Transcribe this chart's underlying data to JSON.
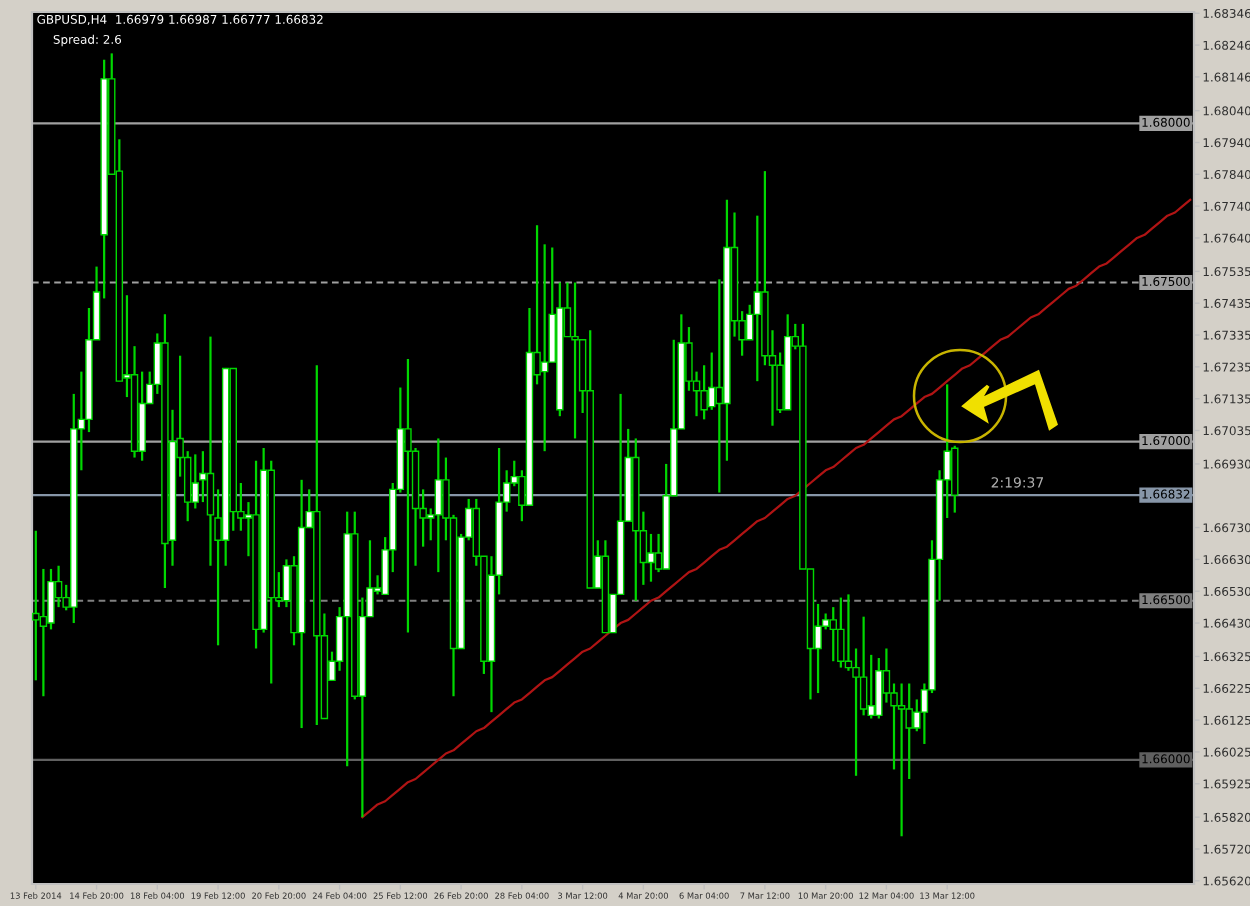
{
  "chart_data": {
    "type": "candlestick",
    "title": "GBPUSD,H4  1.66979 1.66987 1.66777 1.66832",
    "annotations": [
      "Spread: 2.6",
      {
        "text": "2:19:37",
        "y": 1.66832
      }
    ],
    "categories": [
      "13 Feb 2014",
      null,
      null,
      null,
      null,
      null,
      null,
      null,
      "14 Feb 20:00",
      null,
      null,
      null,
      null,
      null,
      null,
      null,
      "18 Feb 04:00",
      null,
      null,
      null,
      null,
      null,
      null,
      null,
      "19 Feb 12:00",
      null,
      null,
      null,
      null,
      null,
      null,
      null,
      "20 Feb 20:00",
      null,
      null,
      null,
      null,
      null,
      null,
      null,
      "24 Feb 04:00",
      null,
      null,
      null,
      null,
      null,
      null,
      null,
      "25 Feb 12:00",
      null,
      null,
      null,
      null,
      null,
      null,
      null,
      "26 Feb 20:00",
      null,
      null,
      null,
      null,
      null,
      null,
      null,
      "28 Feb 04:00",
      null,
      null,
      null,
      null,
      null,
      null,
      null,
      "3 Mar 12:00",
      null,
      null,
      null,
      null,
      null,
      null,
      null,
      "4 Mar 20:00",
      null,
      null,
      null,
      null,
      null,
      null,
      null,
      "6 Mar 04:00",
      null,
      null,
      null,
      null,
      null,
      null,
      null,
      "7 Mar 12:00",
      null,
      null,
      null,
      null,
      null,
      null,
      null,
      "10 Mar 20:00",
      null,
      null,
      null,
      null,
      null,
      null,
      null,
      "12 Mar 04:00",
      null,
      null,
      null,
      null,
      null,
      null,
      null,
      "13 Mar 12:00",
      null,
      null,
      null,
      null,
      null,
      null,
      null,
      null,
      null,
      null,
      null,
      null,
      null,
      null,
      null,
      null,
      null,
      null,
      null,
      null,
      null,
      null,
      null,
      null,
      null,
      null,
      null,
      null,
      null,
      null,
      null,
      null
    ],
    "color": "#00d800",
    "ohlc": [
      [
        1.6646,
        1.6672,
        1.6625,
        1.6644
      ],
      [
        1.6645,
        1.666,
        1.662,
        1.6642
      ],
      [
        1.6643,
        1.666,
        1.6641,
        1.6656
      ],
      [
        1.6656,
        1.6661,
        1.6648,
        1.6651
      ],
      [
        1.6651,
        1.6655,
        1.6647,
        1.6648
      ],
      [
        1.6648,
        1.6715,
        1.6643,
        1.6704
      ],
      [
        1.6704,
        1.6722,
        1.6691,
        1.6707
      ],
      [
        1.6707,
        1.6742,
        1.6703,
        1.6732
      ],
      [
        1.6732,
        1.6755,
        1.6732,
        1.6747
      ],
      [
        1.6765,
        1.682,
        1.6745,
        1.6814
      ],
      [
        1.6814,
        1.6822,
        1.6784,
        1.6784
      ],
      [
        1.6785,
        1.6795,
        1.6719,
        1.6719
      ],
      [
        1.672,
        1.6746,
        1.6714,
        1.6721
      ],
      [
        1.6721,
        1.673,
        1.6695,
        1.6697
      ],
      [
        1.6697,
        1.6722,
        1.6694,
        1.6712
      ],
      [
        1.6712,
        1.6722,
        1.6712,
        1.6718
      ],
      [
        1.6718,
        1.6734,
        1.6715,
        1.6731
      ],
      [
        1.6731,
        1.674,
        1.6654,
        1.6668
      ],
      [
        1.6669,
        1.671,
        1.6661,
        1.67
      ],
      [
        1.6701,
        1.6727,
        1.6689,
        1.6695
      ],
      [
        1.6695,
        1.6697,
        1.6675,
        1.6681
      ],
      [
        1.6681,
        1.6696,
        1.6679,
        1.6687
      ],
      [
        1.6688,
        1.6697,
        1.6681,
        1.669
      ],
      [
        1.669,
        1.6733,
        1.6661,
        1.6677
      ],
      [
        1.6676,
        1.6685,
        1.6636,
        1.6669
      ],
      [
        1.6669,
        1.6723,
        1.6661,
        1.6723
      ],
      [
        1.6723,
        1.6723,
        1.6672,
        1.6678
      ],
      [
        1.6678,
        1.6687,
        1.6672,
        1.6676
      ],
      [
        1.6676,
        1.6681,
        1.6664,
        1.6677
      ],
      [
        1.6677,
        1.6694,
        1.6635,
        1.6641
      ],
      [
        1.6641,
        1.6698,
        1.664,
        1.6691
      ],
      [
        1.6691,
        1.6694,
        1.6624,
        1.6651
      ],
      [
        1.6651,
        1.6659,
        1.6648,
        1.665
      ],
      [
        1.665,
        1.6663,
        1.6648,
        1.6661
      ],
      [
        1.6661,
        1.6664,
        1.6636,
        1.664
      ],
      [
        1.664,
        1.6688,
        1.661,
        1.6673
      ],
      [
        1.6673,
        1.6685,
        1.6673,
        1.6678
      ],
      [
        1.6678,
        1.6724,
        1.6611,
        1.6639
      ],
      [
        1.6639,
        1.6646,
        1.6613,
        1.6613
      ],
      [
        1.6625,
        1.6634,
        1.6625,
        1.6631
      ],
      [
        1.6631,
        1.6648,
        1.6628,
        1.6645
      ],
      [
        1.6645,
        1.6678,
        1.6598,
        1.6671
      ],
      [
        1.6671,
        1.6678,
        1.6619,
        1.662
      ],
      [
        1.662,
        1.6651,
        1.6582,
        1.6645
      ],
      [
        1.6645,
        1.6669,
        1.6645,
        1.6654
      ],
      [
        1.6653,
        1.6658,
        1.6652,
        1.6654
      ],
      [
        1.6652,
        1.667,
        1.6652,
        1.6666
      ],
      [
        1.6666,
        1.6687,
        1.6659,
        1.6685
      ],
      [
        1.6685,
        1.6717,
        1.6684,
        1.6704
      ],
      [
        1.6704,
        1.6726,
        1.664,
        1.6697
      ],
      [
        1.6697,
        1.6698,
        1.6661,
        1.6679
      ],
      [
        1.6679,
        1.6685,
        1.6667,
        1.6676
      ],
      [
        1.6676,
        1.6679,
        1.6669,
        1.6677
      ],
      [
        1.6677,
        1.6701,
        1.6659,
        1.6688
      ],
      [
        1.6688,
        1.6695,
        1.6669,
        1.6676
      ],
      [
        1.6676,
        1.6677,
        1.662,
        1.6635
      ],
      [
        1.6635,
        1.6671,
        1.6635,
        1.667
      ],
      [
        1.667,
        1.6682,
        1.6669,
        1.6679
      ],
      [
        1.6679,
        1.6682,
        1.6661,
        1.6664
      ],
      [
        1.6664,
        1.6664,
        1.6627,
        1.6631
      ],
      [
        1.6631,
        1.6664,
        1.6615,
        1.6658
      ],
      [
        1.6658,
        1.6698,
        1.6652,
        1.6681
      ],
      [
        1.6681,
        1.6691,
        1.6678,
        1.6687
      ],
      [
        1.6687,
        1.6694,
        1.6686,
        1.6689
      ],
      [
        1.6689,
        1.6691,
        1.6675,
        1.668
      ],
      [
        1.668,
        1.6742,
        1.668,
        1.6728
      ],
      [
        1.6728,
        1.6768,
        1.6718,
        1.6721
      ],
      [
        1.6722,
        1.6762,
        1.6697,
        1.6725
      ],
      [
        1.6725,
        1.6761,
        1.6725,
        1.674
      ],
      [
        1.671,
        1.675,
        1.6708,
        1.6742
      ],
      [
        1.6742,
        1.675,
        1.6733,
        1.6733
      ],
      [
        1.6733,
        1.675,
        1.6701,
        1.6732
      ],
      [
        1.6732,
        1.6732,
        1.6709,
        1.6716
      ],
      [
        1.6716,
        1.6735,
        1.6654,
        1.6654
      ],
      [
        1.6654,
        1.6669,
        1.6654,
        1.6664
      ],
      [
        1.6664,
        1.6669,
        1.664,
        1.664
      ],
      [
        1.664,
        1.6652,
        1.664,
        1.6652
      ],
      [
        1.6652,
        1.6715,
        1.6652,
        1.6675
      ],
      [
        1.6675,
        1.6704,
        1.6675,
        1.6695
      ],
      [
        1.6695,
        1.6701,
        1.665,
        1.6672
      ],
      [
        1.6672,
        1.6678,
        1.6655,
        1.6662
      ],
      [
        1.6662,
        1.6671,
        1.6656,
        1.6665
      ],
      [
        1.6665,
        1.6671,
        1.6659,
        1.666
      ],
      [
        1.666,
        1.6693,
        1.666,
        1.6683
      ],
      [
        1.6683,
        1.6732,
        1.6683,
        1.6704
      ],
      [
        1.6704,
        1.674,
        1.6704,
        1.6731
      ],
      [
        1.6731,
        1.6736,
        1.6716,
        1.6719
      ],
      [
        1.6719,
        1.6722,
        1.6708,
        1.6716
      ],
      [
        1.6716,
        1.6724,
        1.6707,
        1.671
      ],
      [
        1.6711,
        1.6728,
        1.671,
        1.6717
      ],
      [
        1.6717,
        1.6751,
        1.6684,
        1.6712
      ],
      [
        1.6712,
        1.6776,
        1.6694,
        1.6761
      ],
      [
        1.6761,
        1.6772,
        1.6733,
        1.6738
      ],
      [
        1.6738,
        1.6741,
        1.6727,
        1.6732
      ],
      [
        1.6732,
        1.6743,
        1.6732,
        1.674
      ],
      [
        1.674,
        1.6771,
        1.6719,
        1.6747
      ],
      [
        1.6747,
        1.6785,
        1.6724,
        1.6727
      ],
      [
        1.6727,
        1.6735,
        1.6705,
        1.6724
      ],
      [
        1.6724,
        1.6728,
        1.6709,
        1.671
      ],
      [
        1.671,
        1.674,
        1.671,
        1.6733
      ],
      [
        1.6733,
        1.6737,
        1.6729,
        1.673
      ],
      [
        1.673,
        1.6737,
        1.666,
        1.666
      ],
      [
        1.666,
        1.666,
        1.6619,
        1.6635
      ],
      [
        1.6635,
        1.6649,
        1.6621,
        1.6642
      ],
      [
        1.6642,
        1.6646,
        1.6641,
        1.6644
      ],
      [
        1.6644,
        1.6648,
        1.6631,
        1.6641
      ],
      [
        1.6641,
        1.6651,
        1.6629,
        1.6631
      ],
      [
        1.6631,
        1.6652,
        1.6628,
        1.6629
      ],
      [
        1.6629,
        1.6635,
        1.6595,
        1.6626
      ],
      [
        1.6626,
        1.6645,
        1.6614,
        1.6616
      ],
      [
        1.6614,
        1.6633,
        1.6613,
        1.6617
      ],
      [
        1.6614,
        1.6632,
        1.6613,
        1.6628
      ],
      [
        1.6628,
        1.6635,
        1.6618,
        1.6621
      ],
      [
        1.6621,
        1.6624,
        1.6597,
        1.6617
      ],
      [
        1.6617,
        1.6624,
        1.6576,
        1.6616
      ],
      [
        1.6616,
        1.6624,
        1.6594,
        1.661
      ],
      [
        1.661,
        1.6619,
        1.6609,
        1.6615
      ],
      [
        1.6615,
        1.6624,
        1.6605,
        1.6622
      ],
      [
        1.6622,
        1.6669,
        1.6621,
        1.6663
      ],
      [
        1.6663,
        1.6691,
        1.665,
        1.6688
      ],
      [
        1.6688,
        1.6718,
        1.6676,
        1.6697
      ],
      [
        1.66979,
        1.66987,
        1.66777,
        1.66832
      ],
      null,
      null,
      null,
      null,
      null,
      null,
      null,
      null,
      null,
      null,
      null,
      null,
      null,
      null,
      null,
      null,
      null,
      null,
      null,
      null,
      null,
      null,
      null,
      null,
      null,
      null,
      null,
      null,
      null,
      null,
      null
    ],
    "series": [
      {
        "type": "line",
        "color": "#b01414",
        "values": [
          null,
          null,
          null,
          null,
          null,
          null,
          null,
          null,
          null,
          null,
          null,
          null,
          null,
          null,
          null,
          null,
          null,
          null,
          null,
          null,
          null,
          null,
          null,
          null,
          null,
          null,
          null,
          null,
          null,
          null,
          null,
          null,
          null,
          null,
          null,
          null,
          null,
          null,
          null,
          null,
          null,
          null,
          null,
          1.6582,
          1.6584,
          1.6586,
          1.6587,
          1.6589,
          1.6591,
          1.6593,
          1.6594,
          1.6596,
          1.6598,
          1.66,
          1.6602,
          1.6603,
          1.6605,
          1.6607,
          1.6609,
          1.661,
          1.6612,
          1.6614,
          1.6616,
          1.6618,
          1.6619,
          1.6621,
          1.6623,
          1.6625,
          1.6626,
          1.6628,
          1.663,
          1.6632,
          1.6634,
          1.6635,
          1.6637,
          1.6639,
          1.6641,
          1.6643,
          1.6644,
          1.6646,
          1.6648,
          1.665,
          1.6651,
          1.6653,
          1.6655,
          1.6657,
          1.6659,
          1.666,
          1.6662,
          1.6664,
          1.6666,
          1.6667,
          1.6669,
          1.6671,
          1.6673,
          1.6675,
          1.6676,
          1.6678,
          1.668,
          1.6682,
          1.6683,
          1.6685,
          1.6687,
          1.6689,
          1.6691,
          1.6692,
          1.6694,
          1.6696,
          1.6698,
          1.6699,
          1.6701,
          1.6703,
          1.6705,
          1.6707,
          1.6708,
          1.671,
          1.6712,
          1.6714,
          1.6715,
          1.6717,
          1.6719,
          1.6721,
          1.6723,
          1.6724,
          1.6726,
          1.6728,
          1.673,
          1.6732,
          1.6733,
          1.6735,
          1.6737,
          1.6739,
          1.674,
          1.6742,
          1.6744,
          1.6746,
          1.6748,
          1.6749,
          1.6751,
          1.6753,
          1.6755,
          1.6756,
          1.6758,
          1.676,
          1.6762,
          1.6764,
          1.6765,
          1.6767,
          1.6769,
          1.6771,
          1.6772,
          1.6774,
          1.6776
        ]
      }
    ],
    "ylim": [
      1.6561,
      1.6835
    ],
    "yticks": [
      {
        "value": 1.68346,
        "label": "1.68346"
      },
      {
        "value": 1.68246,
        "label": "1.68246"
      },
      {
        "value": 1.68146,
        "label": "1.68146"
      },
      {
        "value": 1.6804,
        "label": "1.68040"
      },
      {
        "value": 1.6794,
        "label": "1.67940"
      },
      {
        "value": 1.6784,
        "label": "1.67840"
      },
      {
        "value": 1.6774,
        "label": "1.67740"
      },
      {
        "value": 1.6764,
        "label": "1.67640"
      },
      {
        "value": 1.67535,
        "label": "1.67535"
      },
      {
        "value": 1.67435,
        "label": "1.67435"
      },
      {
        "value": 1.67335,
        "label": "1.67335"
      },
      {
        "value": 1.67235,
        "label": "1.67235"
      },
      {
        "value": 1.67135,
        "label": "1.67135"
      },
      {
        "value": 1.67035,
        "label": "1.67035"
      },
      {
        "value": 1.6693,
        "label": "1.66930"
      },
      {
        "value": 1.6673,
        "label": "1.66730"
      },
      {
        "value": 1.6663,
        "label": "1.66630"
      },
      {
        "value": 1.6653,
        "label": "1.66530"
      },
      {
        "value": 1.6643,
        "label": "1.66430"
      },
      {
        "value": 1.66325,
        "label": "1.66325"
      },
      {
        "value": 1.66225,
        "label": "1.66225"
      },
      {
        "value": 1.66125,
        "label": "1.66125"
      },
      {
        "value": 1.66025,
        "label": "1.66025"
      },
      {
        "value": 1.65925,
        "label": "1.65925"
      },
      {
        "value": 1.6582,
        "label": "1.65820"
      },
      {
        "value": 1.6572,
        "label": "1.65720"
      },
      {
        "value": 1.6562,
        "label": "1.65620"
      }
    ],
    "ref_lines": [
      {
        "axis": "y",
        "value": 1.68,
        "label": "1.68000",
        "color": "#a0a0a0",
        "line_style": "solid"
      },
      {
        "axis": "y",
        "value": 1.675,
        "label": "1.67500",
        "color": "#a0a0a0",
        "line_style": "dashed"
      },
      {
        "axis": "y",
        "value": 1.67,
        "label": "1.67000",
        "color": "#a0a0a0",
        "line_style": "solid"
      },
      {
        "axis": "y",
        "value": 1.66832,
        "label": "1.66832",
        "color": "#8796a8",
        "line_style": "solid"
      },
      {
        "axis": "y",
        "value": 1.665,
        "label": "1.66500",
        "color": "#808080",
        "line_style": "dashed"
      },
      {
        "axis": "y",
        "value": 1.66,
        "label": "1.66000",
        "color": "#606060",
        "line_style": "solid"
      }
    ],
    "grid": false
  }
}
